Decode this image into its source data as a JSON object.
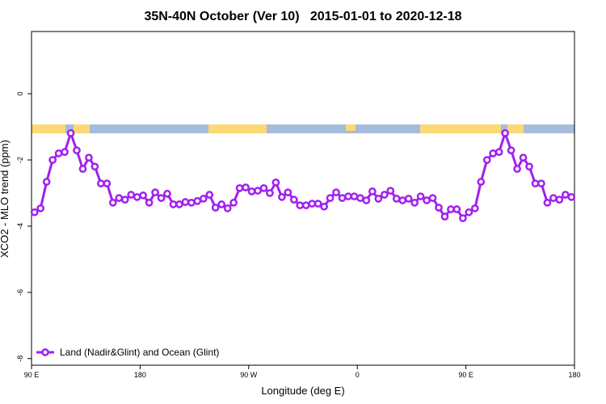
{
  "chart_data": {
    "type": "line",
    "title": "35N-40N October (Ver 10)   2015-01-01 to 2020-12-18",
    "x_label": "Longitude (deg E)",
    "y_label": "XCO2 - MLO trend (ppm)",
    "xlim": [
      90,
      540
    ],
    "xticks": [
      {
        "value": 90,
        "label": "90 E"
      },
      180,
      {
        "value": 270,
        "label": "90 W"
      },
      {
        "value": 360,
        "label": "0"
      },
      {
        "value": 450,
        "label": "90 E"
      },
      {
        "value": 540,
        "label": "180"
      }
    ],
    "ylim": [
      -8.2,
      1.88
    ],
    "yticks": [
      0,
      -2,
      -4,
      -6,
      -8
    ],
    "legend": "bottom-left",
    "x": [
      92.5,
      97.5,
      102.5,
      107.5,
      112.5,
      117.5,
      122.5,
      127.5,
      132.5,
      137.5,
      142.5,
      147.5,
      152.5,
      157.5,
      162.5,
      167.5,
      172.5,
      177.5,
      182.5,
      187.5,
      192.5,
      197.5,
      202.5,
      207.5,
      212.5,
      217.5,
      222.5,
      227.5,
      232.5,
      237.5,
      242.5,
      247.5,
      252.5,
      257.5,
      262.5,
      267.5,
      272.5,
      277.5,
      282.5,
      287.5,
      292.5,
      297.5,
      302.5,
      307.5,
      312.5,
      317.5,
      322.5,
      327.5,
      332.5,
      337.5,
      342.5,
      347.5,
      352.5,
      357.5,
      362.5,
      367.5,
      372.5,
      377.5,
      382.5,
      387.5,
      392.5,
      397.5,
      402.5,
      407.5,
      412.5,
      417.5,
      422.5,
      427.5,
      432.5,
      437.5,
      442.5,
      447.5,
      452.5,
      457.5,
      462.5,
      467.5,
      472.5,
      477.5,
      482.5,
      487.5,
      492.5,
      497.5,
      502.5,
      507.5,
      512.5,
      517.5,
      522.5,
      527.5,
      532.5,
      537.5
    ],
    "series": [
      {
        "name": "Land (Nadir&Glint) and Ocean (Glint)",
        "color": "#a020f0",
        "values": [
          -3.58,
          -3.46,
          -2.66,
          -2.0,
          -1.8,
          -1.76,
          -1.19,
          -1.71,
          -2.27,
          -1.93,
          -2.2,
          -2.71,
          -2.71,
          -3.29,
          -3.15,
          -3.2,
          -3.05,
          -3.12,
          -3.07,
          -3.29,
          -2.98,
          -3.15,
          -3.02,
          -3.34,
          -3.34,
          -3.27,
          -3.29,
          -3.24,
          -3.17,
          -3.05,
          -3.44,
          -3.34,
          -3.46,
          -3.29,
          -2.85,
          -2.83,
          -2.95,
          -2.93,
          -2.85,
          -3.0,
          -2.68,
          -3.12,
          -2.98,
          -3.2,
          -3.37,
          -3.37,
          -3.32,
          -3.32,
          -3.41,
          -3.15,
          -2.98,
          -3.15,
          -3.1,
          -3.1,
          -3.15,
          -3.22,
          -2.95,
          -3.17,
          -3.05,
          -2.93,
          -3.17,
          -3.22,
          -3.17,
          -3.29,
          -3.1,
          -3.22,
          -3.15,
          -3.44,
          -3.71,
          -3.49,
          -3.49,
          -3.76,
          -3.58,
          -3.46,
          -2.66,
          -2.0,
          -1.8,
          -1.76,
          -1.19,
          -1.71,
          -2.27,
          -1.93,
          -2.2,
          -2.71,
          -2.71,
          -3.29,
          -3.15,
          -3.2,
          -3.05,
          -3.12
        ]
      }
    ]
  }
}
